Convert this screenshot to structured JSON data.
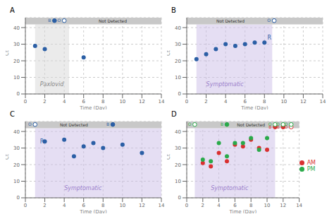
{
  "chart_data": [
    {
      "type": "scatter",
      "title": "A",
      "xlabel": "Time (Day)",
      "ylabel": "Ct",
      "xlim": [
        0,
        14
      ],
      "ylim": [
        0,
        46
      ],
      "xticks": [
        0,
        2,
        4,
        6,
        8,
        10,
        12,
        14
      ],
      "yticks": [
        0,
        10,
        20,
        30,
        40
      ],
      "grid": true,
      "shade": {
        "x0": 1,
        "x1": 4.5,
        "color": "#d8d8d8",
        "label": "Paxlovid",
        "label_color": "#888888",
        "label_x": 1.5,
        "label_y": 6
      },
      "not_detected": {
        "y0": 42.0,
        "y1": 46.0,
        "color": "#c8c8c8",
        "label": "Not Detected"
      },
      "series": [
        {
          "color": "#2b5fa5",
          "x": [
            1,
            2,
            6
          ],
          "values": [
            29,
            27,
            22
          ],
          "nd_markers": [
            {
              "x": 3,
              "y": 44.2,
              "label": "B",
              "marker": "filled"
            },
            {
              "x": 4,
              "y": 44.2,
              "label": "O",
              "marker": "open"
            }
          ]
        }
      ]
    },
    {
      "type": "scatter",
      "title": "B",
      "xlabel": "Time (Day)",
      "ylabel": "Ct",
      "xlim": [
        0,
        14
      ],
      "ylim": [
        0,
        46
      ],
      "xticks": [
        0,
        2,
        4,
        6,
        8,
        10,
        12,
        14
      ],
      "yticks": [
        0,
        10,
        20,
        30,
        40
      ],
      "grid": true,
      "shade": {
        "x0": 1,
        "x1": 8.8,
        "color": "#cbbde8",
        "label": "Symptomatic",
        "label_color": "#9b7fcb",
        "label_x": 2.0,
        "label_y": 6
      },
      "not_detected": {
        "y0": 42.0,
        "y1": 46.0,
        "color": "#c8c8c8",
        "label": "Not Detected"
      },
      "series": [
        {
          "color": "#2b5fa5",
          "x": [
            1,
            2,
            3,
            4,
            5,
            6,
            7,
            8
          ],
          "values": [
            21,
            24,
            27,
            30,
            29,
            30,
            31,
            31
          ],
          "nd_markers": [
            {
              "x": 9,
              "y": 44.2,
              "label": "O",
              "marker": "open"
            }
          ]
        }
      ],
      "annotations": [
        {
          "text": "R",
          "x": 8.3,
          "y": 34,
          "color": "#2b5fa5"
        }
      ]
    },
    {
      "type": "scatter",
      "title": "C",
      "xlabel": "Time (Day)",
      "ylabel": "Ct",
      "xlim": [
        0,
        14
      ],
      "ylim": [
        0,
        46
      ],
      "xticks": [
        0,
        2,
        4,
        6,
        8,
        10,
        12,
        14
      ],
      "yticks": [
        0,
        10,
        20,
        30,
        40
      ],
      "grid": true,
      "shade": {
        "x0": 1,
        "x1": 14,
        "color": "#cbbde8",
        "label": "Symptomatic",
        "label_color": "#9b7fcb",
        "label_x": 4.0,
        "label_y": 6
      },
      "not_detected": {
        "y0": 42.0,
        "y1": 46.0,
        "color": "#c8c8c8",
        "label": "Not Detected"
      },
      "series": [
        {
          "color": "#2b5fa5",
          "x": [
            2,
            4,
            5,
            6,
            7,
            8,
            10,
            12
          ],
          "values": [
            34,
            35,
            25,
            31,
            33,
            30,
            32,
            27
          ],
          "nd_markers": [
            {
              "x": 1,
              "y": 44.2,
              "label": "O",
              "marker": "open"
            },
            {
              "x": 9,
              "y": 44.2,
              "label": "B",
              "marker": "filled"
            }
          ]
        }
      ],
      "annotations": [
        {
          "text": "R",
          "x": 1.5,
          "y": 34,
          "color": "#2b5fa5"
        }
      ]
    },
    {
      "type": "scatter",
      "title": "D",
      "xlabel": "Time (Day)",
      "ylabel": "Ct",
      "xlim": [
        0,
        14
      ],
      "ylim": [
        0,
        46
      ],
      "xticks": [
        0,
        2,
        4,
        6,
        8,
        10,
        12,
        14
      ],
      "yticks": [
        0,
        10,
        20,
        30,
        40
      ],
      "grid": true,
      "legend": "right",
      "shade": {
        "x0": 1,
        "x1": 11,
        "color": "#cbbde8",
        "label": "Symptomatic",
        "label_color": "#9b7fcb",
        "label_x": 3.0,
        "label_y": 6
      },
      "not_detected": {
        "y0": 42.0,
        "y1": 46.0,
        "color": "#c8c8c8",
        "label": "Not Detected"
      },
      "series": [
        {
          "name": "AM",
          "color": "#d93030",
          "x": [
            2,
            3,
            4,
            5,
            6,
            7,
            8,
            9,
            10
          ],
          "values": [
            21,
            19,
            27,
            22,
            32,
            31,
            35,
            30,
            29
          ],
          "nd_markers": [
            {
              "x": 11,
              "y": 42.7,
              "label": "B",
              "marker": "filled"
            },
            {
              "x": 12,
              "y": 42.7,
              "label": "B",
              "marker": "filled"
            },
            {
              "x": 13,
              "y": 42.7,
              "label": "O",
              "marker": "open"
            }
          ]
        },
        {
          "name": "PM",
          "color": "#2aaa4a",
          "x": [
            2,
            3,
            4,
            5,
            6,
            7,
            8,
            9,
            10
          ],
          "values": [
            23,
            22,
            33,
            25,
            33,
            33,
            36,
            29,
            36
          ],
          "nd_markers": [
            {
              "x": 1,
              "y": 44.2,
              "label": "O",
              "marker": "open"
            },
            {
              "x": 5,
              "y": 44.2,
              "label": "B",
              "marker": "filled"
            },
            {
              "x": 11,
              "y": 44.2,
              "label": "O",
              "marker": "open"
            },
            {
              "x": 12,
              "y": 44.2,
              "label": "O",
              "marker": "open"
            },
            {
              "x": 13,
              "y": 44.2,
              "label": "O",
              "marker": "open"
            }
          ]
        }
      ]
    }
  ]
}
